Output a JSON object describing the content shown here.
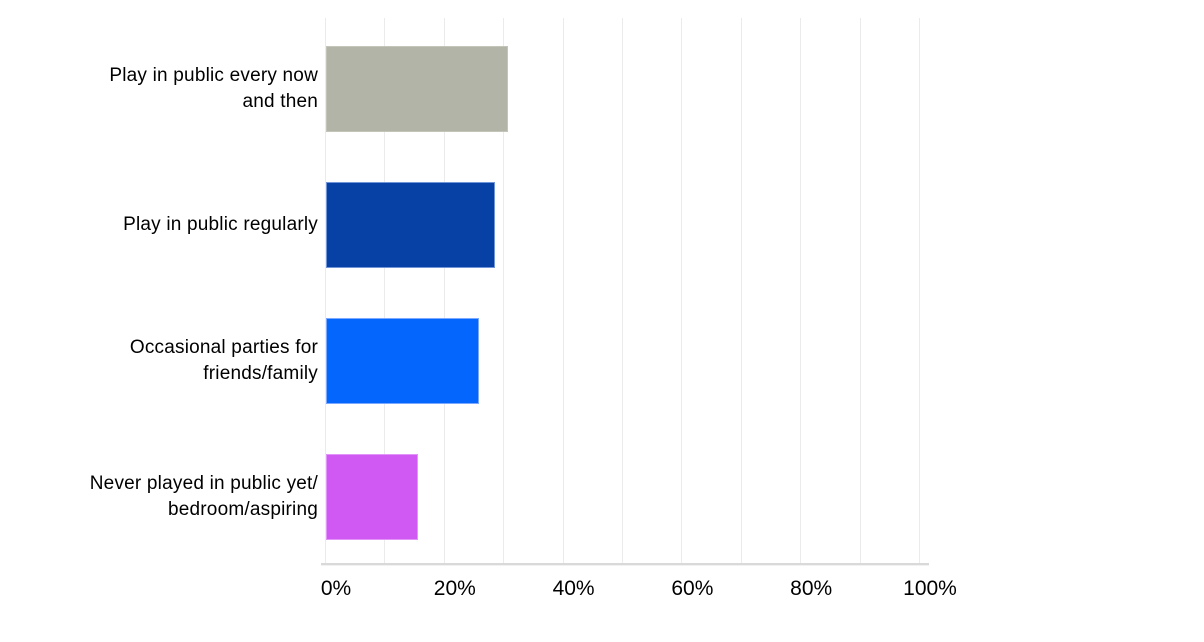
{
  "chart_data": {
    "type": "bar",
    "orientation": "horizontal",
    "title": "",
    "categories": [
      {
        "label": "Play in public every now and then",
        "lines": [
          "Play in public every now",
          "and then"
        ]
      },
      {
        "label": "Play in public regularly",
        "lines": [
          "Play in public regularly"
        ]
      },
      {
        "label": "Occasional parties for friends/family",
        "lines": [
          "Occasional parties for",
          "friends/family"
        ]
      },
      {
        "label": "Never played in public yet/bedroom/aspiring",
        "lines": [
          "Never played in public yet/",
          "bedroom/aspiring"
        ]
      }
    ],
    "values": [
      30.6,
      28.5,
      25.8,
      15.5
    ],
    "unit": "%",
    "xlabel": "",
    "ylabel": "",
    "xlim": [
      0,
      100
    ],
    "x_ticks": [
      {
        "value": 0,
        "label": "0%"
      },
      {
        "value": 20,
        "label": "20%"
      },
      {
        "value": 40,
        "label": "40%"
      },
      {
        "value": 60,
        "label": "60%"
      },
      {
        "value": 80,
        "label": "80%"
      },
      {
        "value": 100,
        "label": "100%"
      }
    ],
    "gridline_step_percent": 10,
    "grid": true,
    "legend": false,
    "bar_colors": [
      "#b2b4a7",
      "#0841a6",
      "#0566fe",
      "#d059f3"
    ],
    "bar_border_colors": [
      "#c3c5b9",
      "#7094d8",
      "#7aa8ff",
      "#e394f8"
    ],
    "colors": {
      "background": "#ffffff",
      "gridline": "#ebebeb",
      "baseline": "#d9d9d9",
      "text": "#000000"
    }
  }
}
